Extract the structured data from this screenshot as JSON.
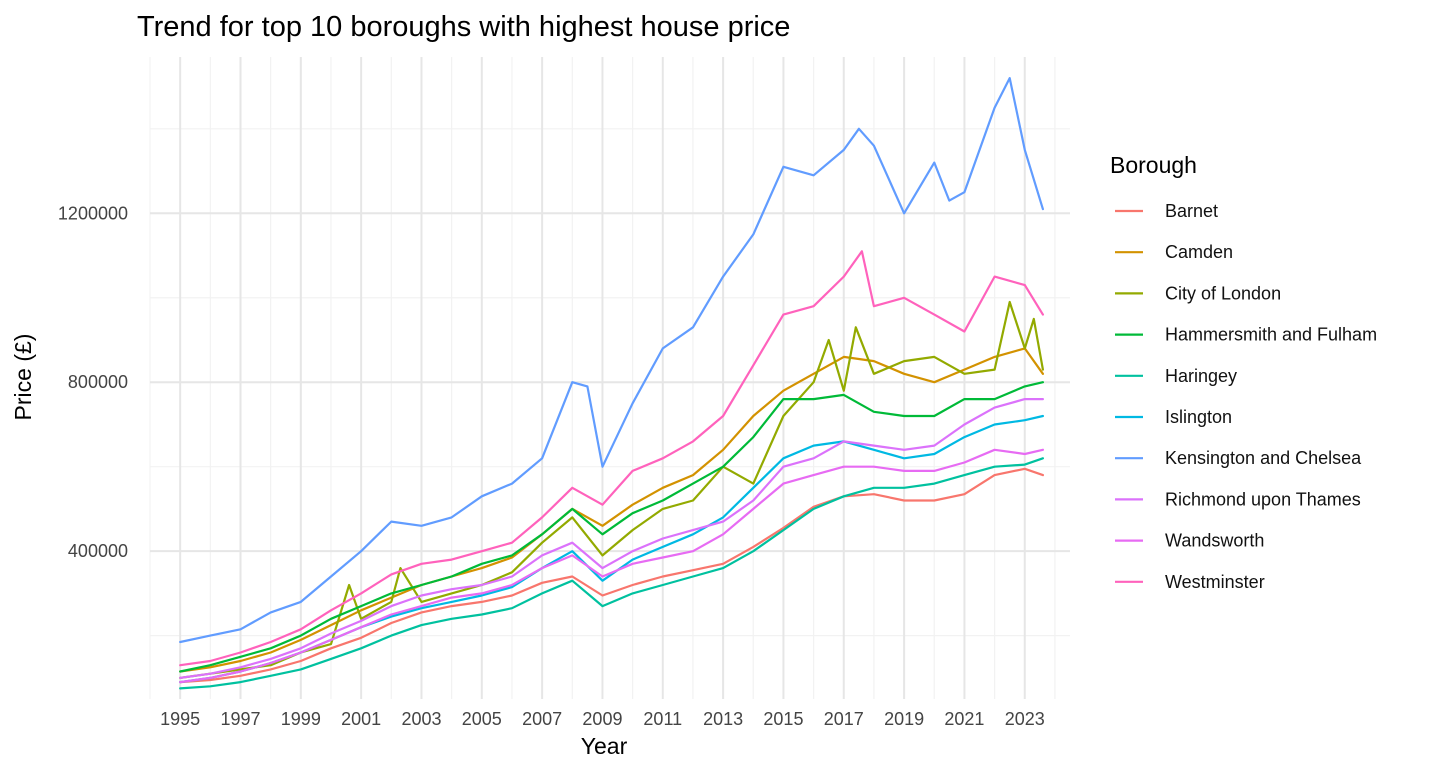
{
  "chart_data": {
    "type": "line",
    "title": "Trend for top 10 boroughs with highest house price",
    "xlabel": "Year",
    "ylabel": "Price (£)",
    "xlim": [
      1994,
      2024.5
    ],
    "ylim": [
      50000,
      1570000
    ],
    "x_ticks": [
      1995,
      1997,
      1999,
      2001,
      2003,
      2005,
      2007,
      2009,
      2011,
      2013,
      2015,
      2017,
      2019,
      2021,
      2023
    ],
    "x_tick_labels": [
      "1995",
      "1997",
      "1999",
      "2001",
      "2003",
      "2005",
      "2007",
      "2009",
      "2011",
      "2013",
      "2015",
      "2017",
      "2019",
      "2021",
      "2023"
    ],
    "y_ticks": [
      400000,
      800000,
      1200000
    ],
    "y_tick_labels": [
      "400000",
      "800000",
      "1200000"
    ],
    "grid": true,
    "legend": {
      "title": "Borough",
      "position": "right"
    },
    "series": [
      {
        "name": "Barnet",
        "color": "#F8766D",
        "x": [
          1995,
          1996,
          1997,
          1998,
          1999,
          2000,
          2001,
          2002,
          2003,
          2004,
          2005,
          2006,
          2007,
          2008,
          2009,
          2010,
          2011,
          2012,
          2013,
          2014,
          2015,
          2016,
          2017,
          2018,
          2019,
          2020,
          2021,
          2022,
          2023,
          2023.6
        ],
        "y": [
          90000,
          95000,
          105000,
          120000,
          140000,
          170000,
          195000,
          230000,
          255000,
          270000,
          280000,
          295000,
          325000,
          340000,
          295000,
          320000,
          340000,
          355000,
          370000,
          410000,
          455000,
          505000,
          530000,
          535000,
          520000,
          520000,
          535000,
          580000,
          595000,
          580000
        ]
      },
      {
        "name": "Camden",
        "color": "#D39200",
        "x": [
          1995,
          1996,
          1997,
          1998,
          1999,
          2000,
          2001,
          2002,
          2003,
          2004,
          2005,
          2006,
          2007,
          2008,
          2009,
          2010,
          2011,
          2012,
          2013,
          2014,
          2015,
          2016,
          2017,
          2018,
          2019,
          2020,
          2021,
          2022,
          2023,
          2023.6
        ],
        "y": [
          115000,
          125000,
          140000,
          160000,
          190000,
          225000,
          260000,
          290000,
          320000,
          340000,
          360000,
          385000,
          440000,
          500000,
          460000,
          510000,
          550000,
          580000,
          640000,
          720000,
          780000,
          820000,
          860000,
          850000,
          820000,
          800000,
          830000,
          860000,
          880000,
          820000
        ]
      },
      {
        "name": "City of London",
        "color": "#93AA00",
        "x": [
          1995,
          1996,
          1997,
          1998,
          1999,
          2000,
          2000.6,
          2001,
          2002,
          2002.3,
          2003,
          2004,
          2005,
          2006,
          2007,
          2008,
          2009,
          2010,
          2011,
          2012,
          2013,
          2014,
          2015,
          2016,
          2016.5,
          2017,
          2017.4,
          2018,
          2019,
          2020,
          2021,
          2022,
          2022.5,
          2023,
          2023.3,
          2023.6
        ],
        "y": [
          100000,
          110000,
          120000,
          130000,
          160000,
          180000,
          320000,
          240000,
          280000,
          360000,
          280000,
          300000,
          320000,
          350000,
          420000,
          480000,
          390000,
          450000,
          500000,
          520000,
          600000,
          560000,
          720000,
          800000,
          900000,
          780000,
          930000,
          820000,
          850000,
          860000,
          820000,
          830000,
          990000,
          880000,
          950000,
          830000
        ]
      },
      {
        "name": "Hammersmith and Fulham",
        "color": "#00BA38",
        "x": [
          1995,
          1996,
          1997,
          1998,
          1999,
          2000,
          2001,
          2002,
          2003,
          2004,
          2005,
          2006,
          2007,
          2008,
          2009,
          2010,
          2011,
          2012,
          2013,
          2014,
          2015,
          2016,
          2017,
          2018,
          2019,
          2020,
          2021,
          2022,
          2023,
          2023.6
        ],
        "y": [
          115000,
          130000,
          150000,
          170000,
          200000,
          240000,
          270000,
          300000,
          320000,
          340000,
          370000,
          390000,
          440000,
          500000,
          440000,
          490000,
          520000,
          560000,
          600000,
          670000,
          760000,
          760000,
          770000,
          730000,
          720000,
          720000,
          760000,
          760000,
          790000,
          800000
        ]
      },
      {
        "name": "Haringey",
        "color": "#00C19F",
        "x": [
          1995,
          1996,
          1997,
          1998,
          1999,
          2000,
          2001,
          2002,
          2003,
          2004,
          2005,
          2006,
          2007,
          2008,
          2009,
          2010,
          2011,
          2012,
          2013,
          2014,
          2015,
          2016,
          2017,
          2018,
          2019,
          2020,
          2021,
          2022,
          2023,
          2023.6
        ],
        "y": [
          75000,
          80000,
          90000,
          105000,
          120000,
          145000,
          170000,
          200000,
          225000,
          240000,
          250000,
          265000,
          300000,
          330000,
          270000,
          300000,
          320000,
          340000,
          360000,
          400000,
          450000,
          500000,
          530000,
          550000,
          550000,
          560000,
          580000,
          600000,
          605000,
          620000
        ]
      },
      {
        "name": "Islington",
        "color": "#00B9E3",
        "x": [
          1995,
          1996,
          1997,
          1998,
          1999,
          2000,
          2001,
          2002,
          2003,
          2004,
          2005,
          2006,
          2007,
          2008,
          2009,
          2010,
          2011,
          2012,
          2013,
          2014,
          2015,
          2016,
          2017,
          2018,
          2019,
          2020,
          2021,
          2022,
          2023,
          2023.6
        ],
        "y": [
          90000,
          100000,
          115000,
          135000,
          160000,
          190000,
          220000,
          245000,
          265000,
          280000,
          295000,
          315000,
          360000,
          400000,
          330000,
          380000,
          410000,
          440000,
          480000,
          550000,
          620000,
          650000,
          660000,
          640000,
          620000,
          630000,
          670000,
          700000,
          710000,
          720000
        ]
      },
      {
        "name": "Kensington and Chelsea",
        "color": "#619CFF",
        "x": [
          1995,
          1996,
          1997,
          1998,
          1999,
          2000,
          2001,
          2002,
          2003,
          2004,
          2005,
          2006,
          2007,
          2008,
          2008.5,
          2009,
          2010,
          2011,
          2012,
          2013,
          2014,
          2015,
          2016,
          2017,
          2017.5,
          2018,
          2019,
          2020,
          2020.5,
          2021,
          2022,
          2022.5,
          2023,
          2023.6
        ],
        "y": [
          185000,
          200000,
          215000,
          255000,
          280000,
          340000,
          400000,
          470000,
          460000,
          480000,
          530000,
          560000,
          620000,
          800000,
          790000,
          600000,
          750000,
          880000,
          930000,
          1050000,
          1150000,
          1310000,
          1290000,
          1350000,
          1400000,
          1360000,
          1200000,
          1320000,
          1230000,
          1250000,
          1450000,
          1520000,
          1350000,
          1210000
        ]
      },
      {
        "name": "Richmond upon Thames",
        "color": "#DB72FB",
        "x": [
          1995,
          1996,
          1997,
          1998,
          1999,
          2000,
          2001,
          2002,
          2003,
          2004,
          2005,
          2006,
          2007,
          2008,
          2009,
          2010,
          2011,
          2012,
          2013,
          2014,
          2015,
          2016,
          2017,
          2018,
          2019,
          2020,
          2021,
          2022,
          2023,
          2023.6
        ],
        "y": [
          100000,
          110000,
          125000,
          145000,
          170000,
          205000,
          235000,
          270000,
          295000,
          310000,
          320000,
          340000,
          390000,
          420000,
          360000,
          400000,
          430000,
          450000,
          470000,
          520000,
          600000,
          620000,
          660000,
          650000,
          640000,
          650000,
          700000,
          740000,
          760000,
          760000
        ]
      },
      {
        "name": "Wandsworth",
        "color": "#E76BF3",
        "x": [
          1995,
          1996,
          1997,
          1998,
          1999,
          2000,
          2001,
          2002,
          2003,
          2004,
          2005,
          2006,
          2007,
          2008,
          2009,
          2010,
          2011,
          2012,
          2013,
          2014,
          2015,
          2016,
          2017,
          2018,
          2019,
          2020,
          2021,
          2022,
          2023,
          2023.6
        ],
        "y": [
          90000,
          100000,
          115000,
          135000,
          160000,
          190000,
          220000,
          250000,
          270000,
          290000,
          300000,
          320000,
          360000,
          390000,
          340000,
          370000,
          385000,
          400000,
          440000,
          500000,
          560000,
          580000,
          600000,
          600000,
          590000,
          590000,
          610000,
          640000,
          630000,
          640000
        ]
      },
      {
        "name": "Westminster",
        "color": "#FF62BC",
        "x": [
          1995,
          1996,
          1997,
          1998,
          1999,
          2000,
          2001,
          2002,
          2003,
          2004,
          2005,
          2006,
          2007,
          2008,
          2009,
          2010,
          2011,
          2012,
          2013,
          2014,
          2015,
          2016,
          2017,
          2017.6,
          2018,
          2019,
          2020,
          2021,
          2022,
          2023,
          2023.6
        ],
        "y": [
          130000,
          140000,
          160000,
          185000,
          215000,
          260000,
          300000,
          345000,
          370000,
          380000,
          400000,
          420000,
          480000,
          550000,
          510000,
          590000,
          620000,
          660000,
          720000,
          840000,
          960000,
          980000,
          1050000,
          1110000,
          980000,
          1000000,
          960000,
          920000,
          1050000,
          1030000,
          960000
        ]
      }
    ]
  }
}
